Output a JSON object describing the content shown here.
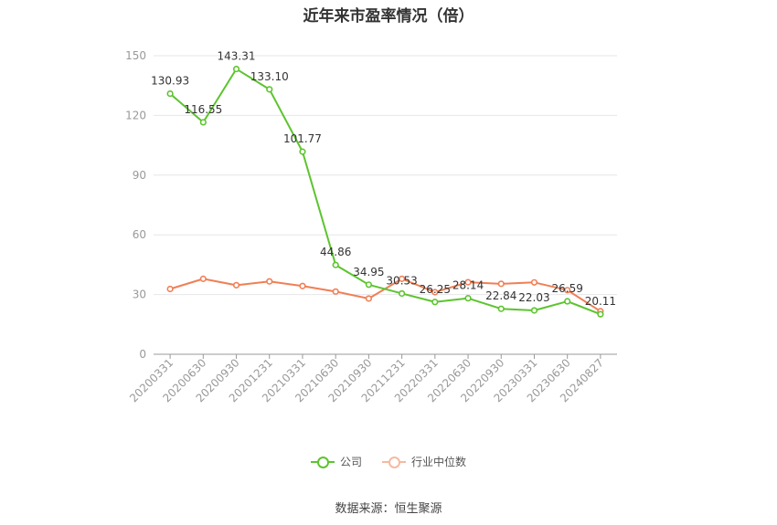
{
  "title": "近年来市盈率情况（倍）",
  "source": "数据来源：恒生聚源",
  "legend": {
    "company": "公司",
    "industry": "行业中位数"
  },
  "colors": {
    "company": "#5cc42e",
    "industry": "#f07f55",
    "grid": "#e6e6ea",
    "axis": "#999999",
    "tick_text": "#999999",
    "label_text": "#333333"
  },
  "chart_data": {
    "type": "line",
    "title": "近年来市盈率情况（倍）",
    "categories": [
      "20200331",
      "20200630",
      "20200930",
      "20201231",
      "20210331",
      "20210630",
      "20210930",
      "20211231",
      "20220331",
      "20220630",
      "20220930",
      "20230331",
      "20230630",
      "20240827"
    ],
    "ylim": [
      0,
      150
    ],
    "yticks": [
      0,
      30,
      60,
      90,
      120,
      150
    ],
    "grid": true,
    "legend_position": "bottom",
    "series": [
      {
        "name": "公司",
        "values": [
          130.93,
          116.55,
          143.31,
          133.1,
          101.77,
          44.86,
          34.95,
          30.53,
          26.25,
          28.14,
          22.84,
          22.03,
          26.59,
          20.11
        ],
        "labels": [
          "130.93",
          "116.55",
          "143.31",
          "133.10",
          "101.77",
          "44.86",
          "34.95",
          "30.53",
          "26.25",
          "28.14",
          "22.84",
          "22.03",
          "26.59",
          "20.11"
        ]
      },
      {
        "name": "行业中位数",
        "values": [
          32.8,
          37.9,
          34.7,
          36.6,
          34.3,
          31.5,
          28.0,
          37.9,
          31.2,
          36.2,
          35.4,
          36.1,
          32.2,
          21.6
        ]
      }
    ]
  }
}
